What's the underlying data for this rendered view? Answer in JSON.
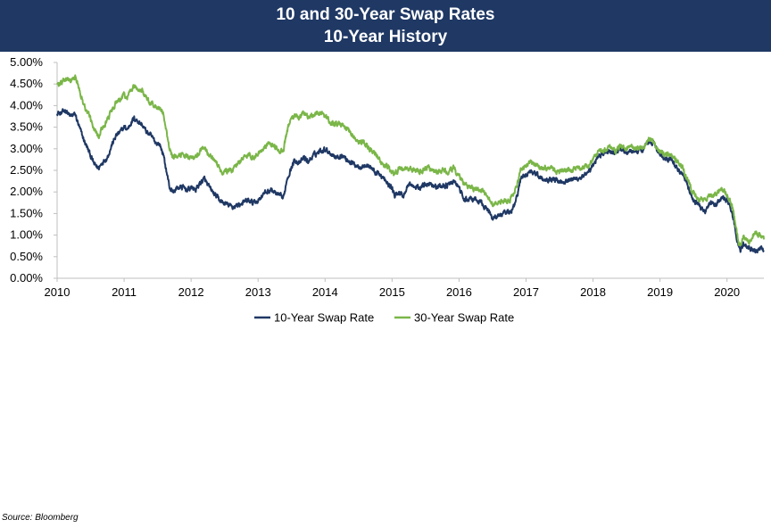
{
  "header": {
    "title": "10 and 30-Year Swap Rates",
    "subtitle": "10-Year History"
  },
  "source": "Source: Bloomberg",
  "colors": {
    "banner": "#1f3864",
    "series_10y": "#1f3864",
    "series_30y": "#7ab648",
    "axis": "#bfbfbf"
  },
  "chart_data": {
    "type": "line",
    "title": "10 and 30-Year Swap Rates",
    "subtitle": "10-Year History",
    "x_ticks": [
      "2010",
      "2011",
      "2012",
      "2013",
      "2014",
      "2015",
      "2016",
      "2017",
      "2018",
      "2019",
      "2020"
    ],
    "y_ticks": [
      "0.00%",
      "0.50%",
      "1.00%",
      "1.50%",
      "2.00%",
      "2.50%",
      "3.00%",
      "3.50%",
      "4.00%",
      "4.50%",
      "5.00%"
    ],
    "xlim": [
      2010,
      2020.55
    ],
    "ylim": [
      0,
      5
    ],
    "grid": false,
    "legend": "bottom",
    "series": [
      {
        "name": "10-Year Swap Rate",
        "color": "#1f3864",
        "x": [
          2010.0,
          2010.05,
          2010.12,
          2010.2,
          2010.27,
          2010.33,
          2010.4,
          2010.47,
          2010.55,
          2010.62,
          2010.68,
          2010.75,
          2010.82,
          2010.88,
          2010.95,
          2011.0,
          2011.05,
          2011.1,
          2011.15,
          2011.2,
          2011.27,
          2011.33,
          2011.4,
          2011.47,
          2011.53,
          2011.58,
          2011.63,
          2011.68,
          2011.73,
          2011.8,
          2011.88,
          2011.95,
          2012.0,
          2012.07,
          2012.13,
          2012.2,
          2012.25,
          2012.32,
          2012.4,
          2012.47,
          2012.55,
          2012.62,
          2012.7,
          2012.78,
          2012.85,
          2012.92,
          2013.0,
          2013.07,
          2013.13,
          2013.2,
          2013.27,
          2013.33,
          2013.38,
          2013.43,
          2013.48,
          2013.55,
          2013.62,
          2013.68,
          2013.75,
          2013.83,
          2013.92,
          2014.0,
          2014.08,
          2014.17,
          2014.25,
          2014.33,
          2014.42,
          2014.5,
          2014.58,
          2014.67,
          2014.75,
          2014.83,
          2014.92,
          2015.0,
          2015.04,
          2015.1,
          2015.17,
          2015.25,
          2015.33,
          2015.42,
          2015.5,
          2015.58,
          2015.67,
          2015.75,
          2015.83,
          2015.92,
          2016.0,
          2016.08,
          2016.17,
          2016.25,
          2016.33,
          2016.42,
          2016.5,
          2016.58,
          2016.67,
          2016.75,
          2016.83,
          2016.88,
          2016.92,
          2017.0,
          2017.08,
          2017.17,
          2017.25,
          2017.33,
          2017.42,
          2017.5,
          2017.58,
          2017.67,
          2017.75,
          2017.83,
          2017.92,
          2018.0,
          2018.08,
          2018.17,
          2018.25,
          2018.33,
          2018.42,
          2018.5,
          2018.58,
          2018.67,
          2018.75,
          2018.83,
          2018.92,
          2019.0,
          2019.08,
          2019.17,
          2019.25,
          2019.33,
          2019.42,
          2019.5,
          2019.58,
          2019.67,
          2019.75,
          2019.83,
          2019.92,
          2020.0,
          2020.05,
          2020.1,
          2020.15,
          2020.2,
          2020.25,
          2020.33,
          2020.42,
          2020.5,
          2020.55
        ],
        "y": [
          3.85,
          3.8,
          3.9,
          3.75,
          3.8,
          3.5,
          3.2,
          2.95,
          2.65,
          2.55,
          2.7,
          2.8,
          3.1,
          3.3,
          3.4,
          3.5,
          3.45,
          3.6,
          3.7,
          3.65,
          3.55,
          3.4,
          3.3,
          3.15,
          3.1,
          2.9,
          2.5,
          2.1,
          2.0,
          2.1,
          2.1,
          2.05,
          2.1,
          2.05,
          2.2,
          2.3,
          2.15,
          2.0,
          1.85,
          1.75,
          1.7,
          1.65,
          1.7,
          1.75,
          1.8,
          1.75,
          1.8,
          1.95,
          2.0,
          2.05,
          1.95,
          1.9,
          1.85,
          2.3,
          2.5,
          2.75,
          2.65,
          2.8,
          2.7,
          2.85,
          2.95,
          3.0,
          2.9,
          2.8,
          2.85,
          2.75,
          2.65,
          2.6,
          2.6,
          2.6,
          2.45,
          2.4,
          2.2,
          2.1,
          1.9,
          2.0,
          1.9,
          2.2,
          2.1,
          2.1,
          2.2,
          2.2,
          2.1,
          2.15,
          2.15,
          2.25,
          2.1,
          1.8,
          1.85,
          1.8,
          1.75,
          1.6,
          1.4,
          1.45,
          1.5,
          1.5,
          1.7,
          2.0,
          2.3,
          2.4,
          2.5,
          2.4,
          2.3,
          2.3,
          2.3,
          2.25,
          2.25,
          2.3,
          2.3,
          2.35,
          2.4,
          2.6,
          2.85,
          2.9,
          2.95,
          2.9,
          3.0,
          2.9,
          2.95,
          2.95,
          3.0,
          3.2,
          3.1,
          2.85,
          2.75,
          2.75,
          2.55,
          2.45,
          2.1,
          1.8,
          1.7,
          1.55,
          1.75,
          1.7,
          1.85,
          1.8,
          1.65,
          1.3,
          0.9,
          0.65,
          0.8,
          0.7,
          0.65,
          0.7,
          0.65
        ]
      },
      {
        "name": "30-Year Swap Rate",
        "color": "#7ab648",
        "x": [
          2010.0,
          2010.05,
          2010.12,
          2010.2,
          2010.27,
          2010.33,
          2010.4,
          2010.47,
          2010.55,
          2010.62,
          2010.68,
          2010.75,
          2010.82,
          2010.88,
          2010.95,
          2011.0,
          2011.05,
          2011.1,
          2011.15,
          2011.2,
          2011.27,
          2011.33,
          2011.4,
          2011.47,
          2011.53,
          2011.58,
          2011.63,
          2011.68,
          2011.73,
          2011.8,
          2011.88,
          2011.95,
          2012.0,
          2012.07,
          2012.13,
          2012.2,
          2012.25,
          2012.32,
          2012.4,
          2012.47,
          2012.55,
          2012.62,
          2012.7,
          2012.78,
          2012.85,
          2012.92,
          2013.0,
          2013.07,
          2013.13,
          2013.2,
          2013.27,
          2013.33,
          2013.38,
          2013.43,
          2013.48,
          2013.55,
          2013.62,
          2013.68,
          2013.75,
          2013.83,
          2013.92,
          2014.0,
          2014.08,
          2014.17,
          2014.25,
          2014.33,
          2014.42,
          2014.5,
          2014.58,
          2014.67,
          2014.75,
          2014.83,
          2014.92,
          2015.0,
          2015.04,
          2015.1,
          2015.17,
          2015.25,
          2015.33,
          2015.42,
          2015.5,
          2015.58,
          2015.67,
          2015.75,
          2015.83,
          2015.92,
          2016.0,
          2016.08,
          2016.17,
          2016.25,
          2016.33,
          2016.42,
          2016.5,
          2016.58,
          2016.67,
          2016.75,
          2016.83,
          2016.88,
          2016.92,
          2017.0,
          2017.08,
          2017.17,
          2017.25,
          2017.33,
          2017.42,
          2017.5,
          2017.58,
          2017.67,
          2017.75,
          2017.83,
          2017.92,
          2018.0,
          2018.08,
          2018.17,
          2018.25,
          2018.33,
          2018.42,
          2018.5,
          2018.58,
          2018.67,
          2018.75,
          2018.83,
          2018.92,
          2019.0,
          2019.08,
          2019.17,
          2019.25,
          2019.33,
          2019.42,
          2019.5,
          2019.58,
          2019.67,
          2019.75,
          2019.83,
          2019.92,
          2020.0,
          2020.05,
          2020.1,
          2020.15,
          2020.2,
          2020.25,
          2020.33,
          2020.42,
          2020.5,
          2020.55
        ],
        "y": [
          4.5,
          4.5,
          4.6,
          4.55,
          4.65,
          4.4,
          4.0,
          3.8,
          3.5,
          3.3,
          3.5,
          3.65,
          3.9,
          4.05,
          4.15,
          4.25,
          4.2,
          4.35,
          4.45,
          4.4,
          4.35,
          4.2,
          4.05,
          3.95,
          3.95,
          3.85,
          3.4,
          3.0,
          2.8,
          2.8,
          2.9,
          2.8,
          2.8,
          2.8,
          2.95,
          3.05,
          2.9,
          2.8,
          2.6,
          2.45,
          2.5,
          2.5,
          2.7,
          2.8,
          2.85,
          2.8,
          2.9,
          3.0,
          3.1,
          3.1,
          3.0,
          2.95,
          2.95,
          3.4,
          3.65,
          3.75,
          3.7,
          3.85,
          3.75,
          3.8,
          3.85,
          3.75,
          3.6,
          3.55,
          3.55,
          3.45,
          3.3,
          3.15,
          3.15,
          3.0,
          2.9,
          2.7,
          2.6,
          2.45,
          2.4,
          2.55,
          2.5,
          2.55,
          2.5,
          2.45,
          2.55,
          2.55,
          2.45,
          2.5,
          2.45,
          2.55,
          2.35,
          2.15,
          2.1,
          2.05,
          2.05,
          1.9,
          1.7,
          1.75,
          1.8,
          1.8,
          2.0,
          2.25,
          2.5,
          2.6,
          2.7,
          2.6,
          2.55,
          2.55,
          2.5,
          2.45,
          2.5,
          2.5,
          2.55,
          2.55,
          2.6,
          2.75,
          2.95,
          3.0,
          3.05,
          2.95,
          3.05,
          3.0,
          3.05,
          3.0,
          3.05,
          3.25,
          3.1,
          2.9,
          2.85,
          2.85,
          2.7,
          2.6,
          2.25,
          1.95,
          1.85,
          1.8,
          1.9,
          1.95,
          2.05,
          1.95,
          1.8,
          1.5,
          1.0,
          0.75,
          0.95,
          0.85,
          1.1,
          0.95,
          0.9
        ]
      }
    ]
  }
}
